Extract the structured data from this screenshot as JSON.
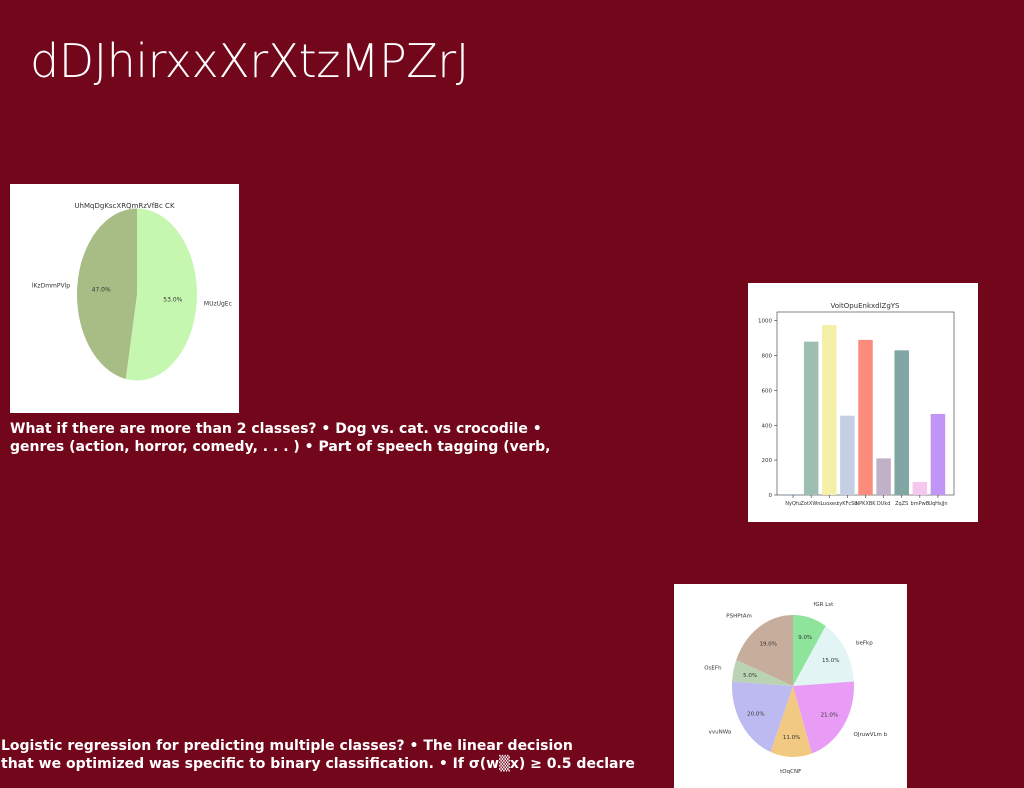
{
  "slide": {
    "title": "dDJhirxxXrXtzMPZrJ",
    "background_color": "#72071c",
    "text_block_1": {
      "line1": "What if there are more than 2 classes? • Dog vs. cat. vs crocodile •",
      "line2": "genres (action, horror, comedy, . . . ) • Part of speech tagging (verb,"
    },
    "text_block_2": {
      "line1": "Logistic regression for predicting multiple classes? • The linear decision",
      "line2": "that we optimized was specific to binary classification. • If σ(w▒x) ≥ 0.5 declare"
    }
  },
  "chart_data": [
    {
      "type": "pie",
      "title": "UhMqDgKscXRQmRzVfBc CK",
      "slices": [
        {
          "label": "MUzUgEc",
          "value": 53.0,
          "pct_label": "53.0%",
          "color": "#c6f7b0"
        },
        {
          "label": "lKzDmmPVlp",
          "value": 47.0,
          "pct_label": "47.0%",
          "color": "#a8bd85"
        }
      ]
    },
    {
      "type": "bar",
      "title": "VoitOpuEnkxdlZgYS",
      "categories": [
        "NyQfu",
        "ZotXWni",
        "Luoxeu",
        "tyKFcSb",
        "NPKXBK",
        "DUkd",
        "ZqZS",
        "bmPwB",
        "UqHsjJn"
      ],
      "values": [
        5,
        880,
        975,
        455,
        890,
        210,
        830,
        75,
        465
      ],
      "colors": [
        "#a9c0e0",
        "#9dbfb1",
        "#f5f0a8",
        "#c4cfe3",
        "#fb8c7c",
        "#c0b0c8",
        "#7fa6a3",
        "#f4c7ed",
        "#c194f5"
      ],
      "ylim": [
        0,
        1050
      ],
      "yticks": [
        0,
        200,
        400,
        600,
        800,
        1000
      ]
    },
    {
      "type": "pie",
      "title": "",
      "slices": [
        {
          "label": "fGR Lst",
          "value": 9.0,
          "pct_label": "9.0%",
          "color": "#8ee49a"
        },
        {
          "label": "beFkp",
          "value": 15.0,
          "pct_label": "15.0%",
          "color": "#e2f4f4"
        },
        {
          "label": "OJruwVLm b",
          "value": 21.0,
          "pct_label": "21.0%",
          "color": "#e89cf5"
        },
        {
          "label": "tOqCNF",
          "value": 11.0,
          "pct_label": "11.0%",
          "color": "#f2c983"
        },
        {
          "label": "vvuNWa",
          "value": 20.0,
          "pct_label": "20.0%",
          "color": "#bcbaf0"
        },
        {
          "label": "OsEFh",
          "value": 5.0,
          "pct_label": "5.0%",
          "color": "#bad3b3"
        },
        {
          "label": "PSHPtAm",
          "value": 19.0,
          "pct_label": "19.0%",
          "color": "#c7ad9c"
        }
      ]
    }
  ]
}
